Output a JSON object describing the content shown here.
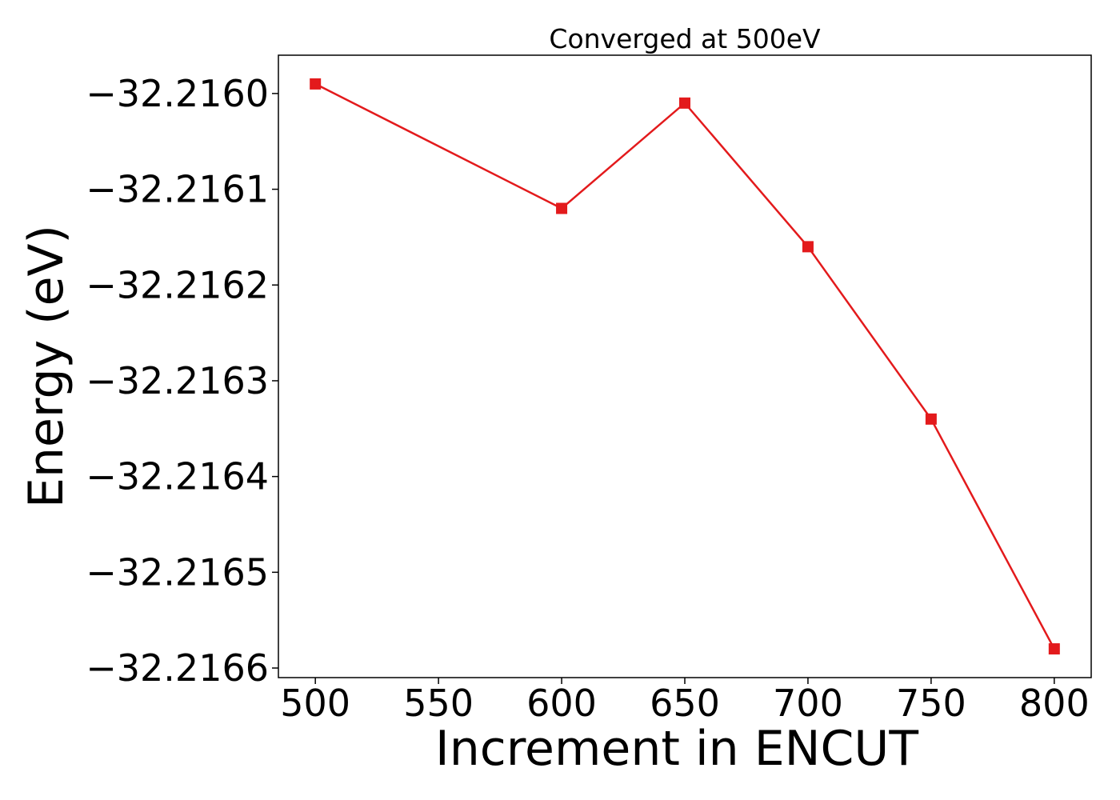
{
  "chart_data": {
    "type": "line",
    "title": "Converged at 500eV",
    "xlabel": "Increment in ENCUT",
    "ylabel": "Energy (eV)",
    "x": [
      500,
      600,
      650,
      700,
      750,
      800
    ],
    "series": [
      {
        "values": [
          -32.21599,
          -32.21612,
          -32.21601,
          -32.21616,
          -32.21634,
          -32.21658
        ],
        "color": "#e31a1c",
        "marker": "square"
      }
    ],
    "xlim": [
      485,
      815
    ],
    "ylim": [
      -32.21661,
      -32.21596
    ],
    "xticks": [
      500,
      550,
      600,
      650,
      700,
      750,
      800
    ],
    "xtick_labels": [
      "500",
      "550",
      "600",
      "650",
      "700",
      "750",
      "800"
    ],
    "yticks": [
      -32.216,
      -32.2161,
      -32.2162,
      -32.2163,
      -32.2164,
      -32.2165,
      -32.2166
    ],
    "ytick_labels": [
      "−32.2160",
      "−32.2161",
      "−32.2162",
      "−32.2163",
      "−32.2164",
      "−32.2165",
      "−32.2166"
    ],
    "grid": false,
    "legend": "none"
  }
}
